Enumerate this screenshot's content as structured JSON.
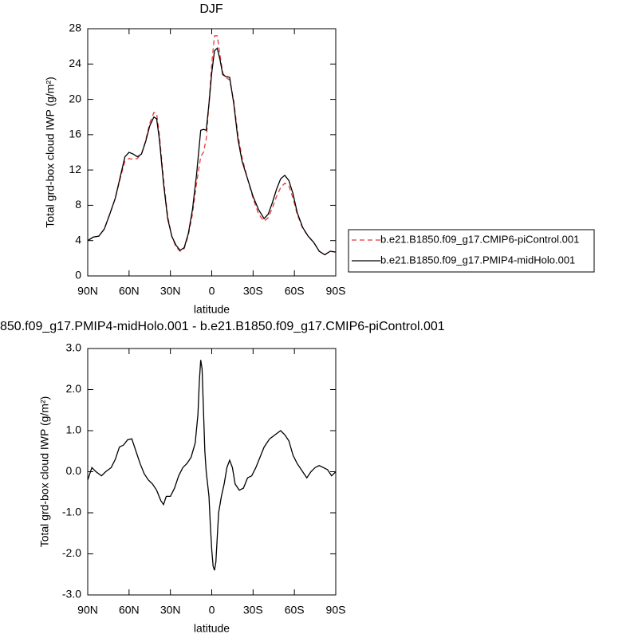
{
  "chart_data": [
    {
      "type": "line",
      "title": "DJF",
      "x_label": "latitude",
      "y_label": "Total grd-box cloud IWP (g/m²)",
      "x": [
        90,
        86,
        82,
        78,
        74,
        70,
        66,
        63,
        60,
        57,
        54,
        51,
        48,
        45,
        42,
        40,
        38,
        35,
        32,
        29,
        26,
        23,
        20,
        17,
        14,
        11,
        8,
        6,
        4,
        2,
        0,
        -2,
        -4,
        -6,
        -8,
        -10,
        -13,
        -16,
        -19,
        -22,
        -26,
        -30,
        -34,
        -38,
        -41,
        -44,
        -47,
        -50,
        -53,
        -56,
        -59,
        -62,
        -66,
        -70,
        -74,
        -78,
        -82,
        -86,
        -90
      ],
      "series": [
        {
          "name": "b.e21.B1850.f09_g17.CMIP6-piControl.001",
          "color": "#e8383a",
          "line_style": "dashed",
          "values": [
            4.0,
            4.4,
            4.5,
            5.3,
            7.0,
            8.8,
            11.3,
            13.0,
            13.3,
            13.2,
            13.3,
            13.8,
            15.3,
            17.3,
            18.5,
            18.4,
            16.0,
            11.0,
            6.8,
            4.5,
            3.3,
            2.8,
            3.1,
            4.6,
            7.0,
            10.5,
            13.5,
            14.0,
            15.5,
            19.5,
            24.0,
            27.2,
            27.2,
            25.0,
            23.0,
            22.5,
            22.2,
            19.8,
            16.0,
            13.4,
            11.0,
            8.8,
            7.0,
            6.2,
            6.6,
            7.7,
            9.0,
            10.0,
            10.5,
            10.2,
            8.8,
            7.0,
            5.4,
            4.5,
            3.8,
            2.8,
            2.4,
            2.8,
            2.7
          ]
        },
        {
          "name": "b.e21.B1850.f09_g17.PMIP4-midHolo.001",
          "color": "#000000",
          "line_style": "solid",
          "values": [
            4.0,
            4.4,
            4.5,
            5.3,
            7.0,
            8.8,
            11.5,
            13.5,
            14.0,
            13.8,
            13.5,
            13.8,
            15.2,
            17.0,
            18.0,
            17.8,
            15.5,
            10.5,
            6.5,
            4.5,
            3.5,
            2.9,
            3.2,
            4.8,
            7.5,
            11.5,
            16.5,
            16.6,
            16.5,
            19.5,
            23.0,
            25.5,
            25.8,
            24.5,
            22.8,
            22.6,
            22.5,
            19.5,
            15.5,
            13.0,
            11.0,
            9.0,
            7.5,
            6.5,
            7.0,
            8.3,
            9.8,
            11.0,
            11.4,
            10.8,
            9.3,
            7.2,
            5.5,
            4.5,
            3.8,
            2.8,
            2.4,
            2.8,
            2.7
          ]
        }
      ],
      "xlim": [
        90,
        -90
      ],
      "xticks": [
        {
          "value": 90,
          "label": "90N"
        },
        {
          "value": 60,
          "label": "60N"
        },
        {
          "value": 30,
          "label": "30N"
        },
        0,
        {
          "value": -30,
          "label": "30S"
        },
        {
          "value": -60,
          "label": "60S"
        },
        {
          "value": -90,
          "label": "90S"
        }
      ],
      "ylim": [
        0,
        28
      ],
      "yticks": [
        0,
        4,
        8,
        12,
        16,
        20,
        24,
        28
      ],
      "grid": false,
      "legend": "right"
    },
    {
      "type": "line",
      "title": "850.f09_g17.PMIP4-midHolo.001 - b.e21.B1850.f09_g17.CMIP6-piControl.001",
      "x_label": "latitude",
      "y_label": "Total grd-box cloud IWP (g/m²)",
      "x": [
        90,
        87,
        84,
        80,
        77,
        73,
        70,
        67,
        64,
        61,
        58,
        55,
        52,
        49,
        46,
        43,
        40,
        37,
        35,
        33,
        30,
        27,
        24,
        21,
        18,
        15,
        12,
        10,
        9,
        8,
        7,
        6,
        5,
        4,
        2,
        1,
        0,
        -1,
        -2,
        -3,
        -5,
        -7,
        -9,
        -11,
        -13,
        -15,
        -17,
        -20,
        -23,
        -26,
        -29,
        -32,
        -35,
        -38,
        -42,
        -46,
        -50,
        -53,
        -56,
        -59,
        -62,
        -66,
        -69,
        -72,
        -75,
        -78,
        -81,
        -84,
        -87,
        -90
      ],
      "series": [
        {
          "color": "#000000",
          "line_style": "solid",
          "values": [
            -0.2,
            0.1,
            0.0,
            -0.1,
            0.0,
            0.1,
            0.3,
            0.6,
            0.65,
            0.78,
            0.8,
            0.5,
            0.2,
            -0.05,
            -0.2,
            -0.3,
            -0.45,
            -0.7,
            -0.8,
            -0.6,
            -0.6,
            -0.4,
            -0.1,
            0.1,
            0.2,
            0.35,
            0.7,
            1.4,
            2.2,
            2.72,
            2.5,
            1.5,
            0.5,
            0.0,
            -0.6,
            -1.3,
            -1.9,
            -2.3,
            -2.4,
            -2.2,
            -1.0,
            -0.6,
            -0.3,
            0.1,
            0.28,
            0.1,
            -0.3,
            -0.45,
            -0.4,
            -0.15,
            -0.1,
            0.1,
            0.35,
            0.6,
            0.8,
            0.9,
            1.0,
            0.9,
            0.75,
            0.4,
            0.2,
            0.0,
            -0.15,
            0.0,
            0.1,
            0.15,
            0.1,
            0.05,
            -0.1,
            0.0
          ]
        }
      ],
      "xlim": [
        90,
        -90
      ],
      "xticks": [
        {
          "value": 90,
          "label": "90N"
        },
        {
          "value": 60,
          "label": "60N"
        },
        {
          "value": 30,
          "label": "30N"
        },
        0,
        {
          "value": -30,
          "label": "30S"
        },
        {
          "value": -60,
          "label": "60S"
        },
        {
          "value": -90,
          "label": "90S"
        }
      ],
      "ylim": [
        -3,
        3
      ],
      "yticks": [
        {
          "value": -3,
          "label": "-3.0"
        },
        {
          "value": -2,
          "label": "-2.0"
        },
        {
          "value": -1,
          "label": "-1.0"
        },
        {
          "value": 0,
          "label": "0.0"
        },
        {
          "value": 1,
          "label": "1.0"
        },
        {
          "value": 2,
          "label": "2.0"
        },
        {
          "value": 3,
          "label": "3.0"
        }
      ],
      "grid": false
    }
  ]
}
